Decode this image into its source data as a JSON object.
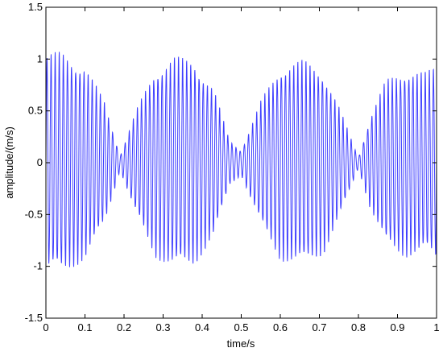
{
  "chart_data": {
    "type": "line",
    "title": "",
    "xlabel": "time/s",
    "ylabel": "amplitude/(m/s)",
    "xlim": [
      0,
      1
    ],
    "ylim": [
      -1.5,
      1.5
    ],
    "x_ticks": [
      0,
      0.1,
      0.2,
      0.3,
      0.4,
      0.5,
      0.6,
      0.7,
      0.8,
      0.9,
      1
    ],
    "x_tick_labels": [
      "0",
      "0.1",
      "0.2",
      "0.3",
      "0.4",
      "0.5",
      "0.6",
      "0.7",
      "0.8",
      "0.9",
      "1"
    ],
    "y_ticks": [
      -1.5,
      -1,
      -0.5,
      0,
      0.5,
      1,
      1.5
    ],
    "y_tick_labels": [
      "-1.5",
      "-1",
      "-0.5",
      "0",
      "0.5",
      "1",
      "1.5"
    ],
    "grid": false,
    "legend": null,
    "series": [
      {
        "color": "#4040ff",
        "envelope": {
          "x": [
            0,
            0.04,
            0.1,
            0.15,
            0.19,
            0.23,
            0.28,
            0.33,
            0.38,
            0.43,
            0.47,
            0.5,
            0.55,
            0.6,
            0.66,
            0.71,
            0.75,
            0.8,
            0.83,
            0.87,
            0.92,
            0.97,
            1
          ],
          "amplitude": [
            1.05,
            1.08,
            0.95,
            0.6,
            0.07,
            0.5,
            0.92,
            1.03,
            1.0,
            0.72,
            0.22,
            0.12,
            0.6,
            0.95,
            1.0,
            0.9,
            0.55,
            0.05,
            0.45,
            0.8,
            0.92,
            0.88,
            0.95
          ]
        },
        "carrier_frequency_hz": 95
      }
    ]
  }
}
